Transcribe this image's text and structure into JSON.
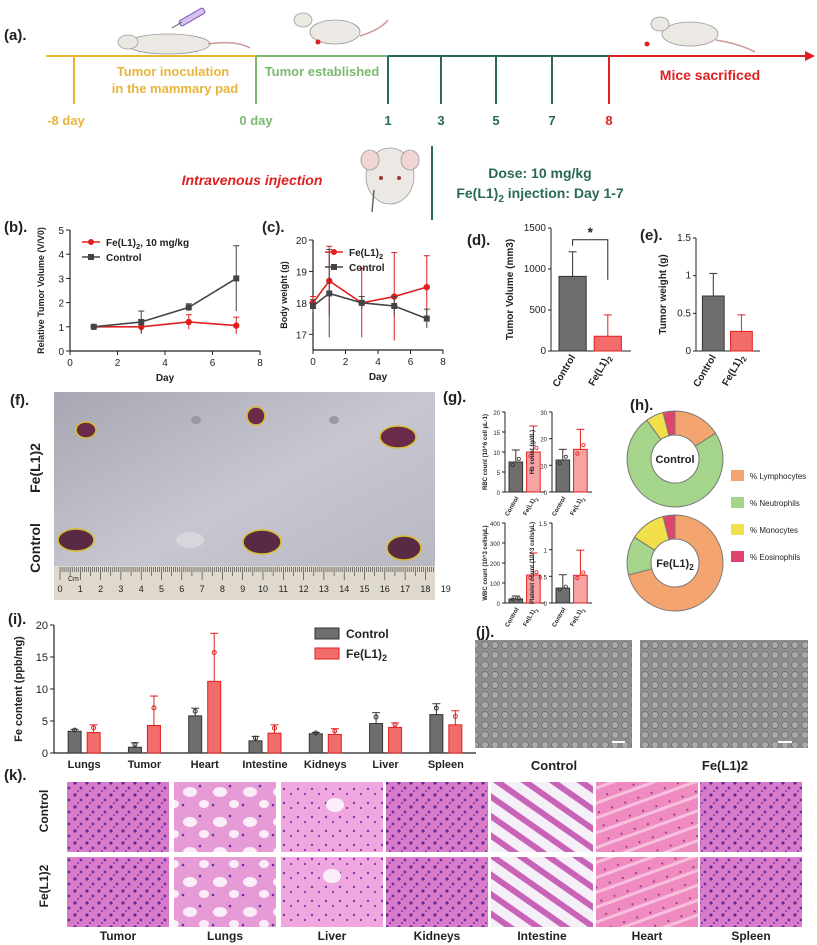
{
  "panel_labels": {
    "a": "(a).",
    "b": "(b).",
    "c": "(c).",
    "d": "(d).",
    "e": "(e).",
    "f": "(f).",
    "g": "(g).",
    "h": "(h).",
    "i": "(i).",
    "j": "(j).",
    "k": "(k)."
  },
  "timeline": {
    "phase_inoculation": [
      "Tumor inoculation",
      "in the mammary pad"
    ],
    "phase_established": "Tumor established",
    "phase_sacrificed": "Mice sacrificed",
    "days": [
      {
        "label": "-8 day",
        "color": "#e8b53a"
      },
      {
        "label": "0 day",
        "color": "#7cb870"
      },
      {
        "label": "1",
        "color": "#2a6a54"
      },
      {
        "label": "3",
        "color": "#2a6a54"
      },
      {
        "label": "5",
        "color": "#2a6a54"
      },
      {
        "label": "7",
        "color": "#2a6a54"
      },
      {
        "label": "8",
        "color": "#e02020"
      }
    ],
    "injection_label": "Intravenous injection",
    "dose_text": "Dose: 10 mg/kg",
    "schedule_prefix": "Fe(L1)",
    "schedule_sub": "2",
    "schedule_suffix": " injection: Day 1-7"
  },
  "colors": {
    "control": "#444444",
    "treated": "#e02020",
    "treated_fill": "#f05050",
    "orange": "#f4a46e",
    "green": "#a5d58a",
    "yellow": "#f2e04a",
    "pink": "#e0446a",
    "yellow_line": "#e8b53a",
    "green_line": "#7cb870",
    "teal_line": "#2a6a54",
    "red_line": "#e02020"
  },
  "chart_data": [
    {
      "id": "b",
      "type": "line",
      "ylabel": "Relative Tumor Volume (V/V0)",
      "xlabel": "Day",
      "xlim": [
        0,
        8
      ],
      "ylim": [
        0,
        5
      ],
      "xticks": [
        0,
        2,
        4,
        6,
        8
      ],
      "yticks": [
        0,
        1,
        2,
        3,
        4,
        5
      ],
      "legend_position": "top-left",
      "series": [
        {
          "name": "Fe(L1)2, 10 mg/kg",
          "x": [
            1,
            3,
            5,
            7
          ],
          "y": [
            1.0,
            1.0,
            1.2,
            1.05
          ],
          "err": [
            0.05,
            0.3,
            0.3,
            0.35
          ]
        },
        {
          "name": "Control",
          "x": [
            1,
            3,
            5,
            7
          ],
          "y": [
            1.0,
            1.2,
            1.8,
            3.0
          ],
          "err": [
            0.05,
            0.45,
            0.15,
            1.35
          ]
        }
      ]
    },
    {
      "id": "c",
      "type": "line",
      "ylabel": "Body weight (g)",
      "xlabel": "Day",
      "xlim": [
        0,
        8
      ],
      "ylim": [
        16.5,
        20
      ],
      "xticks": [
        0,
        2,
        4,
        6,
        8
      ],
      "yticks": [
        17,
        18,
        19,
        20
      ],
      "legend_position": "top-left",
      "series": [
        {
          "name": "Fe(L1)2",
          "x": [
            0,
            1,
            3,
            5,
            7
          ],
          "y": [
            18.0,
            18.7,
            18.0,
            18.2,
            18.5
          ],
          "err": [
            0.2,
            1.1,
            1.1,
            1.4,
            1.0
          ]
        },
        {
          "name": "Control",
          "x": [
            0,
            1,
            3,
            5,
            7
          ],
          "y": [
            17.9,
            18.3,
            18.0,
            17.9,
            17.5
          ],
          "err": [
            0.2,
            1.4,
            0.2,
            0.3,
            0.3
          ]
        }
      ]
    },
    {
      "id": "d",
      "type": "bar",
      "ylabel": "Tumor Volume (mm3)",
      "categories": [
        "Control",
        "Fe(L1)2"
      ],
      "values": [
        910,
        180
      ],
      "err": [
        300,
        260
      ],
      "ylim": [
        0,
        1500
      ],
      "yticks": [
        0,
        500,
        1000,
        1500
      ],
      "significance": "*"
    },
    {
      "id": "e",
      "type": "bar",
      "ylabel": "Tumor weight (g)",
      "categories": [
        "Control",
        "Fe(L1)2"
      ],
      "values": [
        0.73,
        0.26
      ],
      "err": [
        0.3,
        0.22
      ],
      "ylim": [
        0,
        1.5
      ],
      "yticks": [
        0,
        0.5,
        1.0,
        1.5
      ]
    },
    {
      "id": "g1",
      "type": "bar",
      "ylabel": "RBC count (10^6 cell µL-1)",
      "categories": [
        "Control",
        "Fe(L1)2"
      ],
      "values": [
        7.5,
        10
      ],
      "err": [
        3,
        6.5
      ],
      "ylim": [
        0,
        20
      ],
      "yticks": [
        0,
        5,
        10,
        15,
        20
      ]
    },
    {
      "id": "g2",
      "type": "bar",
      "ylabel": "Hb count (g/dL)",
      "categories": [
        "Control",
        "Fe(L1)2"
      ],
      "values": [
        12,
        16
      ],
      "err": [
        4,
        7.5
      ],
      "ylim": [
        0,
        30
      ],
      "yticks": [
        0,
        10,
        20,
        30
      ]
    },
    {
      "id": "g3",
      "type": "bar",
      "ylabel": "WBC count (10^3 cells/µL)",
      "categories": [
        "Control",
        "Fe(L1)2"
      ],
      "values": [
        20,
        140
      ],
      "err": [
        15,
        110
      ],
      "ylim": [
        0,
        400
      ],
      "yticks": [
        0,
        100,
        200,
        300,
        400
      ]
    },
    {
      "id": "g4",
      "type": "bar",
      "ylabel": "Platelet count (10^3 cells/µL)",
      "categories": [
        "Control",
        "Fe(L1)2"
      ],
      "values": [
        0.28,
        0.52
      ],
      "err": [
        0.25,
        0.47
      ],
      "ylim": [
        0,
        1.5
      ],
      "yticks": [
        0,
        0.5,
        1.0,
        1.5
      ]
    },
    {
      "id": "h",
      "type": "pie",
      "legend": [
        "% Lymphocytes",
        "% Neutrophils",
        "% Monocytes",
        "% Eosinophils"
      ],
      "charts": [
        {
          "label": "Control",
          "values": [
            16,
            74,
            6,
            4
          ]
        },
        {
          "label": "Fe(L1)2",
          "values": [
            71,
            13,
            12,
            4
          ]
        }
      ]
    },
    {
      "id": "i",
      "type": "bar",
      "ylabel": "Fe content (ppb/mg)",
      "categories": [
        "Lungs",
        "Tumor",
        "Heart",
        "Intestine",
        "Kidneys",
        "Liver",
        "Spleen"
      ],
      "ylim": [
        0,
        20
      ],
      "yticks": [
        0,
        5,
        10,
        15,
        20
      ],
      "legend_position": "top-center",
      "series": [
        {
          "name": "Control",
          "values": [
            3.4,
            0.9,
            5.8,
            1.9,
            3.0,
            4.6,
            6.0
          ],
          "err": [
            0.3,
            0.7,
            1.2,
            0.7,
            0.2,
            1.7,
            1.7
          ]
        },
        {
          "name": "Fe(L1)2",
          "values": [
            3.2,
            4.3,
            11.2,
            3.1,
            2.9,
            4.0,
            4.4
          ],
          "err": [
            1.2,
            4.6,
            7.5,
            1.3,
            0.9,
            0.7,
            2.2
          ]
        }
      ]
    }
  ],
  "photo_f": {
    "row_labels": [
      "Fe(L1)2",
      "Control"
    ],
    "ruler_unit": "Cm",
    "ruler_numbers": [
      "0",
      "1",
      "2",
      "3",
      "4",
      "5",
      "6",
      "7",
      "8",
      "9",
      "10",
      "11",
      "12",
      "13",
      "14",
      "15",
      "16",
      "17",
      "18",
      "19"
    ]
  },
  "panel_j": {
    "labels": [
      "Control",
      "Fe(L1)2"
    ]
  },
  "panel_k": {
    "row_labels": [
      "Control",
      "Fe(L1)2"
    ],
    "col_labels": [
      "Tumor",
      "Lungs",
      "Liver",
      "Kidneys",
      "Intestine",
      "Heart",
      "Spleen"
    ]
  }
}
